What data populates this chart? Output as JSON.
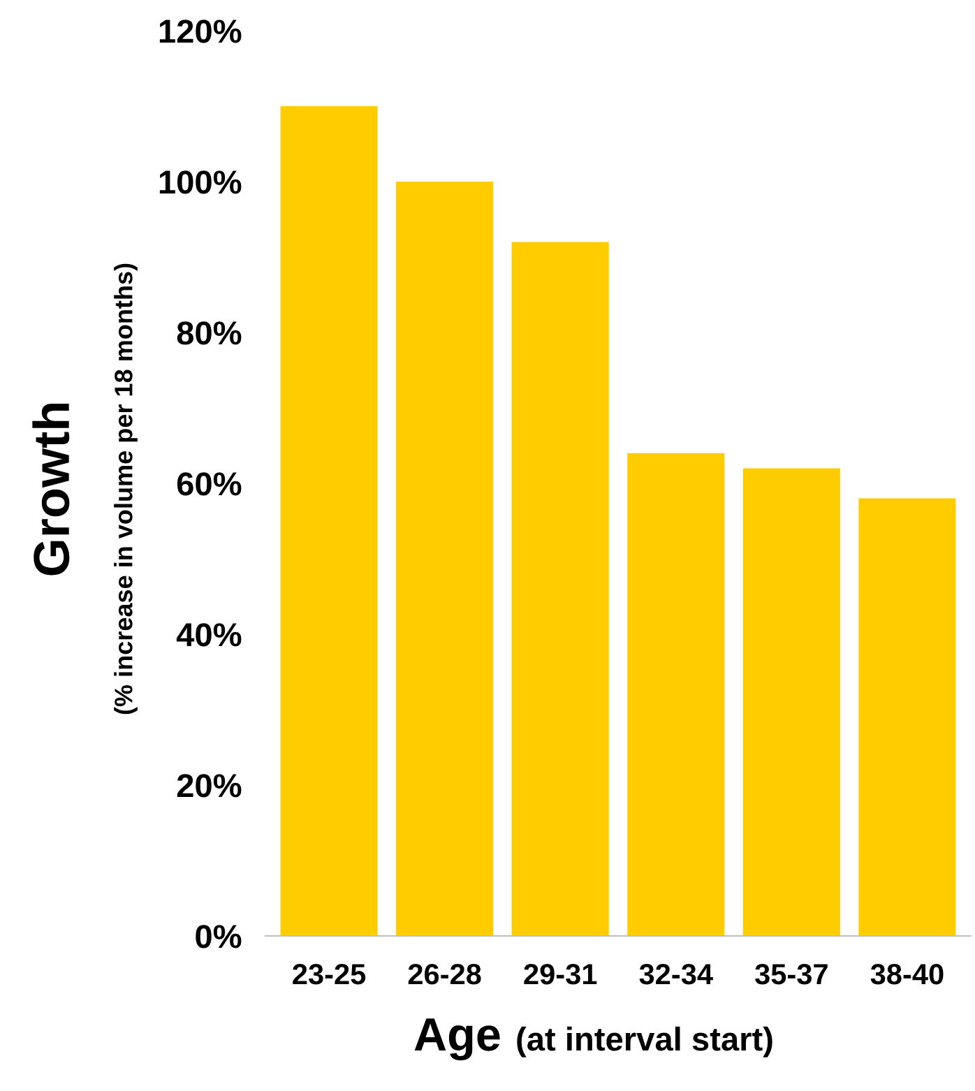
{
  "chart_data": {
    "type": "bar",
    "xlabel": "Age (at interval start)",
    "ylabel": "Growth (% increase in volume per 18 months)",
    "categories": [
      "23-25",
      "26-28",
      "29-31",
      "32-34",
      "35-37",
      "38-40"
    ],
    "values": [
      110,
      100,
      92,
      64,
      62,
      58
    ],
    "color": "#ffcc00",
    "ylim": [
      0,
      120
    ],
    "yticks": [
      {
        "value": 0,
        "label": "0%"
      },
      {
        "value": 20,
        "label": "20%"
      },
      {
        "value": 40,
        "label": "40%"
      },
      {
        "value": 60,
        "label": "60%"
      },
      {
        "value": 80,
        "label": "80%"
      },
      {
        "value": 100,
        "label": "100%"
      },
      {
        "value": 120,
        "label": "120%"
      }
    ],
    "grid": false,
    "legend": false
  }
}
